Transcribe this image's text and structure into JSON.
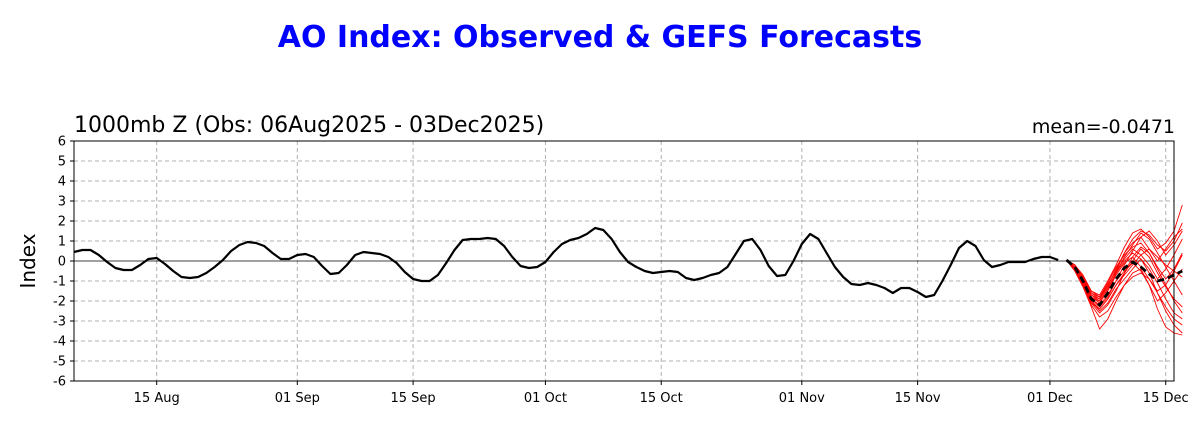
{
  "chart_data": {
    "type": "line",
    "title": "AO Index: Observed & GEFS Forecasts",
    "subtitle": "1000mb Z (Obs: 06Aug2025 - 03Dec2025)",
    "stat_label": "mean=-0.0471",
    "ylabel": "Index",
    "xlabel": "",
    "xlim": [
      "2025-08-05",
      "2025-12-16"
    ],
    "ylim": [
      -6,
      6
    ],
    "yticks": [
      -6,
      -5,
      -4,
      -3,
      -2,
      -1,
      0,
      1,
      2,
      3,
      4,
      5,
      6
    ],
    "xticks": [
      {
        "date": "2025-08-15",
        "label": "15 Aug"
      },
      {
        "date": "2025-09-01",
        "label": "01 Sep"
      },
      {
        "date": "2025-09-15",
        "label": "15 Sep"
      },
      {
        "date": "2025-10-01",
        "label": "01 Oct"
      },
      {
        "date": "2025-10-15",
        "label": "15 Oct"
      },
      {
        "date": "2025-11-01",
        "label": "01 Nov"
      },
      {
        "date": "2025-11-15",
        "label": "15 Nov"
      },
      {
        "date": "2025-12-01",
        "label": "01 Dec"
      },
      {
        "date": "2025-12-15",
        "label": "15 Dec"
      }
    ],
    "grid": true,
    "zero_line": true,
    "colors": {
      "title": "#0000ff",
      "observed": "#000000",
      "ensemble_members": "#ff0000",
      "ensemble_mean": "#000000"
    },
    "observed": {
      "start": "2025-08-05",
      "values": [
        0.45,
        0.55,
        0.55,
        0.3,
        -0.05,
        -0.35,
        -0.45,
        -0.45,
        -0.2,
        0.1,
        0.15,
        -0.15,
        -0.5,
        -0.8,
        -0.85,
        -0.8,
        -0.6,
        -0.3,
        0.05,
        0.5,
        0.8,
        0.95,
        0.9,
        0.75,
        0.4,
        0.1,
        0.1,
        0.3,
        0.35,
        0.2,
        -0.25,
        -0.65,
        -0.6,
        -0.2,
        0.3,
        0.45,
        0.4,
        0.35,
        0.2,
        -0.1,
        -0.55,
        -0.9,
        -1.0,
        -1.0,
        -0.7,
        -0.1,
        0.55,
        1.05,
        1.1,
        1.1,
        1.15,
        1.1,
        0.75,
        0.2,
        -0.25,
        -0.35,
        -0.3,
        -0.05,
        0.45,
        0.85,
        1.05,
        1.15,
        1.35,
        1.65,
        1.55,
        1.1,
        0.45,
        -0.05,
        -0.3,
        -0.5,
        -0.6,
        -0.55,
        -0.5,
        -0.55,
        -0.85,
        -0.95,
        -0.85,
        -0.7,
        -0.6,
        -0.3,
        0.35,
        1.0,
        1.1,
        0.55,
        -0.25,
        -0.75,
        -0.7,
        0.0,
        0.85,
        1.35,
        1.1,
        0.4,
        -0.3,
        -0.8,
        -1.15,
        -1.2,
        -1.1,
        -1.2,
        -1.35,
        -1.6,
        -1.35,
        -1.35,
        -1.55,
        -1.8,
        -1.7,
        -1.0,
        -0.2,
        0.65,
        1.0,
        0.75,
        0.05,
        -0.3,
        -0.2,
        -0.05,
        -0.05,
        -0.05,
        0.1,
        0.2,
        0.2,
        0.05
      ]
    },
    "forecast": {
      "start": "2025-12-03",
      "mean": [
        0.05,
        -0.3,
        -1.0,
        -1.9,
        -2.2,
        -1.6,
        -0.9,
        -0.35,
        -0.05,
        -0.3,
        -0.65,
        -1.0,
        -0.9,
        -0.7,
        -0.5
      ],
      "members": [
        [
          0.05,
          -0.2,
          -0.7,
          -1.5,
          -1.7,
          -1.0,
          -0.2,
          0.7,
          1.4,
          1.6,
          1.2,
          0.6,
          0.9,
          1.5,
          2.8
        ],
        [
          0.05,
          -0.3,
          -0.9,
          -1.7,
          -1.9,
          -1.2,
          -0.5,
          0.4,
          1.1,
          1.5,
          1.3,
          0.8,
          0.5,
          1.0,
          1.9
        ],
        [
          0.05,
          -0.4,
          -1.1,
          -2.0,
          -2.4,
          -1.9,
          -1.2,
          -0.7,
          -0.2,
          0.3,
          0.6,
          0.2,
          -0.2,
          -0.5,
          -0.8
        ],
        [
          0.05,
          -0.5,
          -1.3,
          -2.3,
          -3.4,
          -2.9,
          -2.0,
          -1.2,
          -0.6,
          -0.4,
          -1.2,
          -2.4,
          -3.3,
          -3.6,
          -3.7
        ],
        [
          0.05,
          -0.3,
          -1.0,
          -1.8,
          -2.0,
          -1.4,
          -0.6,
          0.0,
          0.4,
          0.1,
          -0.6,
          -1.6,
          -2.5,
          -3.2,
          -3.6
        ],
        [
          0.05,
          -0.2,
          -0.8,
          -1.6,
          -1.8,
          -1.1,
          -0.3,
          0.3,
          0.7,
          0.9,
          0.4,
          -0.3,
          -0.9,
          -0.4,
          0.4
        ],
        [
          0.05,
          -0.4,
          -1.2,
          -2.1,
          -2.6,
          -2.2,
          -1.5,
          -0.6,
          0.2,
          0.7,
          0.4,
          -0.4,
          -1.2,
          -2.0,
          -2.6
        ],
        [
          0.05,
          -0.3,
          -1.0,
          -1.9,
          -2.3,
          -1.8,
          -1.0,
          -0.2,
          0.5,
          1.2,
          1.5,
          1.0,
          0.3,
          0.8,
          1.5
        ],
        [
          0.05,
          -0.3,
          -0.9,
          -1.8,
          -2.1,
          -1.5,
          -0.7,
          -0.1,
          0.2,
          -0.3,
          -0.9,
          -1.5,
          -1.2,
          -0.5,
          0.3
        ],
        [
          0.05,
          -0.5,
          -1.2,
          -2.2,
          -2.8,
          -2.5,
          -1.8,
          -1.2,
          -0.8,
          -0.6,
          -0.9,
          -1.6,
          -2.3,
          -2.9,
          -3.2
        ],
        [
          0.05,
          -0.2,
          -0.8,
          -1.6,
          -1.9,
          -1.3,
          -0.4,
          0.4,
          0.9,
          1.2,
          0.6,
          0.0,
          0.6,
          1.2,
          1.6
        ],
        [
          0.05,
          -0.4,
          -1.1,
          -2.0,
          -2.5,
          -2.1,
          -1.4,
          -0.9,
          -0.4,
          0.1,
          -0.4,
          -1.1,
          -1.9,
          -2.6,
          -2.9
        ],
        [
          0.05,
          -0.3,
          -1.0,
          -1.9,
          -2.2,
          -1.7,
          -1.0,
          -0.5,
          -0.1,
          -0.5,
          -1.2,
          -2.0,
          -1.6,
          -1.0,
          -0.4
        ],
        [
          0.05,
          -0.3,
          -0.9,
          -1.7,
          -2.0,
          -1.4,
          -0.6,
          0.2,
          0.8,
          1.4,
          1.1,
          0.4,
          -0.3,
          -1.0,
          -1.7
        ],
        [
          0.05,
          -0.4,
          -1.1,
          -2.1,
          -2.4,
          -1.9,
          -1.2,
          -0.6,
          0.0,
          0.6,
          0.2,
          -0.6,
          -1.3,
          -1.9,
          -2.3
        ],
        [
          0.05,
          -0.2,
          -0.8,
          -1.5,
          -1.8,
          -1.2,
          -0.5,
          0.1,
          0.6,
          0.3,
          -0.2,
          -0.9,
          -0.4,
          0.3,
          1.1
        ]
      ]
    }
  }
}
